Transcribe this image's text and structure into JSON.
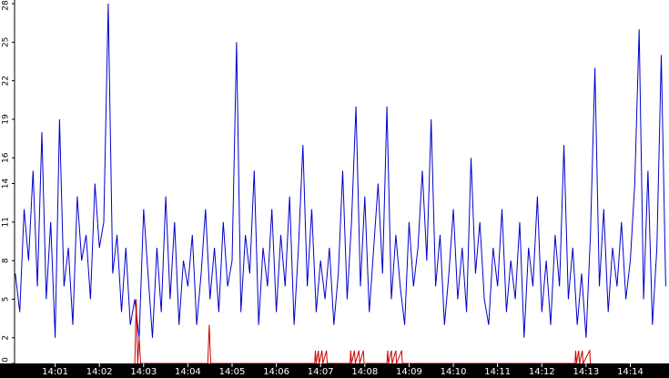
{
  "chart_data": {
    "type": "line",
    "title": "",
    "xlabel": "",
    "ylabel": "",
    "ylim": [
      0,
      28
    ],
    "xlim": [
      "14:00:05",
      "14:14:50"
    ],
    "grid": false,
    "legend": "none",
    "y_ticks": [
      "0",
      "2",
      "5",
      "8",
      "11",
      "14",
      "16",
      "19",
      "22",
      "25",
      "28"
    ],
    "x_ticks": [
      {
        "time": "14:01:00",
        "label": "14:01"
      },
      {
        "time": "14:02:00",
        "label": "14:02"
      },
      {
        "time": "14:03:00",
        "label": "14:03"
      },
      {
        "time": "14:04:00",
        "label": "14:04"
      },
      {
        "time": "14:05:00",
        "label": "14:05"
      },
      {
        "time": "14:06:00",
        "label": "14:06"
      },
      {
        "time": "14:07:00",
        "label": "14:07"
      },
      {
        "time": "14:08:00",
        "label": "14:08"
      },
      {
        "time": "14:09:00",
        "label": "14:09"
      },
      {
        "time": "14:10:00",
        "label": "14:10"
      },
      {
        "time": "14:11:00",
        "label": "14:11"
      },
      {
        "time": "14:12:00",
        "label": "14:12"
      },
      {
        "time": "14:13:00",
        "label": "14:13"
      },
      {
        "time": "14:14:00",
        "label": "14:14"
      }
    ],
    "series": [
      {
        "color": "#0000cc",
        "points": [
          [
            "14:00:06",
            7
          ],
          [
            "14:00:12",
            4
          ],
          [
            "14:00:18",
            12
          ],
          [
            "14:00:24",
            8
          ],
          [
            "14:00:30",
            15
          ],
          [
            "14:00:36",
            6
          ],
          [
            "14:00:42",
            18
          ],
          [
            "14:00:48",
            5
          ],
          [
            "14:00:54",
            11
          ],
          [
            "14:01:00",
            2
          ],
          [
            "14:01:06",
            19
          ],
          [
            "14:01:12",
            6
          ],
          [
            "14:01:18",
            9
          ],
          [
            "14:01:24",
            3
          ],
          [
            "14:01:30",
            13
          ],
          [
            "14:01:36",
            8
          ],
          [
            "14:01:42",
            10
          ],
          [
            "14:01:48",
            5
          ],
          [
            "14:01:54",
            14
          ],
          [
            "14:02:00",
            9
          ],
          [
            "14:02:06",
            11
          ],
          [
            "14:02:12",
            28
          ],
          [
            "14:02:18",
            7
          ],
          [
            "14:02:24",
            10
          ],
          [
            "14:02:30",
            4
          ],
          [
            "14:02:36",
            9
          ],
          [
            "14:02:42",
            3
          ],
          [
            "14:02:48",
            5
          ],
          [
            "14:02:54",
            2
          ],
          [
            "14:03:00",
            12
          ],
          [
            "14:03:06",
            7
          ],
          [
            "14:03:12",
            2
          ],
          [
            "14:03:18",
            9
          ],
          [
            "14:03:24",
            4
          ],
          [
            "14:03:30",
            13
          ],
          [
            "14:03:36",
            5
          ],
          [
            "14:03:42",
            11
          ],
          [
            "14:03:48",
            3
          ],
          [
            "14:03:54",
            8
          ],
          [
            "14:04:00",
            6
          ],
          [
            "14:04:06",
            10
          ],
          [
            "14:04:12",
            3
          ],
          [
            "14:04:18",
            7
          ],
          [
            "14:04:24",
            12
          ],
          [
            "14:04:30",
            5
          ],
          [
            "14:04:36",
            9
          ],
          [
            "14:04:42",
            4
          ],
          [
            "14:04:48",
            11
          ],
          [
            "14:04:54",
            6
          ],
          [
            "14:05:00",
            8
          ],
          [
            "14:05:06",
            25
          ],
          [
            "14:05:12",
            4
          ],
          [
            "14:05:18",
            10
          ],
          [
            "14:05:24",
            7
          ],
          [
            "14:05:30",
            15
          ],
          [
            "14:05:36",
            3
          ],
          [
            "14:05:42",
            9
          ],
          [
            "14:05:48",
            6
          ],
          [
            "14:05:54",
            12
          ],
          [
            "14:06:00",
            4
          ],
          [
            "14:06:06",
            10
          ],
          [
            "14:06:12",
            6
          ],
          [
            "14:06:18",
            13
          ],
          [
            "14:06:24",
            3
          ],
          [
            "14:06:30",
            9
          ],
          [
            "14:06:36",
            17
          ],
          [
            "14:06:42",
            6
          ],
          [
            "14:06:48",
            12
          ],
          [
            "14:06:54",
            4
          ],
          [
            "14:07:00",
            8
          ],
          [
            "14:07:06",
            5
          ],
          [
            "14:07:12",
            9
          ],
          [
            "14:07:18",
            3
          ],
          [
            "14:07:24",
            7
          ],
          [
            "14:07:30",
            15
          ],
          [
            "14:07:36",
            5
          ],
          [
            "14:07:42",
            11
          ],
          [
            "14:07:48",
            20
          ],
          [
            "14:07:54",
            6
          ],
          [
            "14:08:00",
            13
          ],
          [
            "14:08:06",
            4
          ],
          [
            "14:08:12",
            9
          ],
          [
            "14:08:18",
            14
          ],
          [
            "14:08:24",
            7
          ],
          [
            "14:08:30",
            20
          ],
          [
            "14:08:36",
            5
          ],
          [
            "14:08:42",
            10
          ],
          [
            "14:08:48",
            6
          ],
          [
            "14:08:54",
            3
          ],
          [
            "14:09:00",
            11
          ],
          [
            "14:09:06",
            6
          ],
          [
            "14:09:12",
            9
          ],
          [
            "14:09:18",
            15
          ],
          [
            "14:09:24",
            8
          ],
          [
            "14:09:30",
            19
          ],
          [
            "14:09:36",
            6
          ],
          [
            "14:09:42",
            10
          ],
          [
            "14:09:48",
            3
          ],
          [
            "14:09:54",
            7
          ],
          [
            "14:10:00",
            12
          ],
          [
            "14:10:06",
            5
          ],
          [
            "14:10:12",
            9
          ],
          [
            "14:10:18",
            4
          ],
          [
            "14:10:24",
            16
          ],
          [
            "14:10:30",
            7
          ],
          [
            "14:10:36",
            11
          ],
          [
            "14:10:42",
            5
          ],
          [
            "14:10:48",
            3
          ],
          [
            "14:10:54",
            9
          ],
          [
            "14:11:00",
            6
          ],
          [
            "14:11:06",
            12
          ],
          [
            "14:11:12",
            4
          ],
          [
            "14:11:18",
            8
          ],
          [
            "14:11:24",
            5
          ],
          [
            "14:11:30",
            11
          ],
          [
            "14:11:36",
            2
          ],
          [
            "14:11:42",
            9
          ],
          [
            "14:11:48",
            6
          ],
          [
            "14:11:54",
            13
          ],
          [
            "14:12:00",
            4
          ],
          [
            "14:12:06",
            8
          ],
          [
            "14:12:12",
            3
          ],
          [
            "14:12:18",
            10
          ],
          [
            "14:12:24",
            6
          ],
          [
            "14:12:30",
            17
          ],
          [
            "14:12:36",
            5
          ],
          [
            "14:12:42",
            9
          ],
          [
            "14:12:48",
            3
          ],
          [
            "14:12:54",
            7
          ],
          [
            "14:13:00",
            2
          ],
          [
            "14:13:06",
            10
          ],
          [
            "14:13:12",
            23
          ],
          [
            "14:13:18",
            6
          ],
          [
            "14:13:24",
            12
          ],
          [
            "14:13:30",
            4
          ],
          [
            "14:13:36",
            9
          ],
          [
            "14:13:42",
            6
          ],
          [
            "14:13:48",
            11
          ],
          [
            "14:13:54",
            5
          ],
          [
            "14:14:00",
            8
          ],
          [
            "14:14:06",
            14
          ],
          [
            "14:14:12",
            26
          ],
          [
            "14:14:18",
            5
          ],
          [
            "14:14:24",
            15
          ],
          [
            "14:14:30",
            3
          ],
          [
            "14:14:36",
            9
          ],
          [
            "14:14:42",
            24
          ],
          [
            "14:14:48",
            6
          ]
        ]
      },
      {
        "color": "#cc0000",
        "points": [
          [
            "14:02:48",
            0
          ],
          [
            "14:02:50",
            5
          ],
          [
            "14:02:52",
            0
          ],
          [
            "14:02:54",
            2
          ],
          [
            "14:02:56",
            0
          ],
          [
            "14:04:27",
            0
          ],
          [
            "14:04:29",
            3
          ],
          [
            "14:04:31",
            0
          ],
          [
            "14:06:52",
            0
          ],
          [
            "14:06:53",
            1
          ],
          [
            "14:06:54",
            0
          ],
          [
            "14:06:57",
            1
          ],
          [
            "14:06:58",
            0
          ],
          [
            "14:07:02",
            1
          ],
          [
            "14:07:03",
            0
          ],
          [
            "14:07:08",
            1
          ],
          [
            "14:07:09",
            0
          ],
          [
            "14:07:40",
            0
          ],
          [
            "14:07:41",
            1
          ],
          [
            "14:07:42",
            0
          ],
          [
            "14:07:46",
            1
          ],
          [
            "14:07:47",
            0
          ],
          [
            "14:07:52",
            1
          ],
          [
            "14:07:53",
            0
          ],
          [
            "14:07:58",
            1
          ],
          [
            "14:07:59",
            0
          ],
          [
            "14:08:30",
            0
          ],
          [
            "14:08:31",
            1
          ],
          [
            "14:08:32",
            0
          ],
          [
            "14:08:36",
            1
          ],
          [
            "14:08:37",
            0
          ],
          [
            "14:08:42",
            1
          ],
          [
            "14:08:43",
            0
          ],
          [
            "14:08:50",
            1
          ],
          [
            "14:08:51",
            0
          ],
          [
            "14:12:45",
            0
          ],
          [
            "14:12:46",
            1
          ],
          [
            "14:12:47",
            0
          ],
          [
            "14:12:50",
            1
          ],
          [
            "14:12:51",
            0
          ],
          [
            "14:12:55",
            1
          ],
          [
            "14:12:56",
            0
          ],
          [
            "14:13:05",
            1
          ],
          [
            "14:13:06",
            0
          ]
        ]
      }
    ]
  }
}
